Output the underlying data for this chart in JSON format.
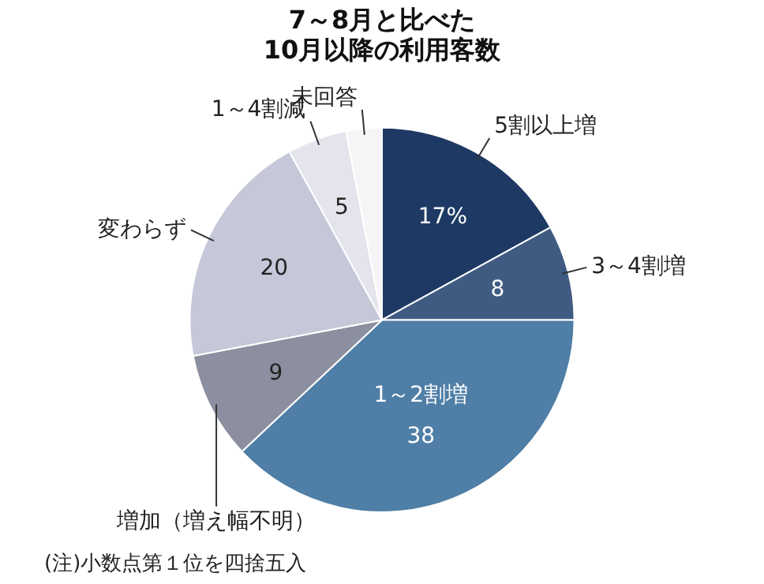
{
  "chart_data": {
    "type": "pie",
    "title": "7～8月と比べた\n10月以降の利用客数",
    "categories": [
      "5割以上増",
      "3～4割増",
      "1～2割増",
      "増加（増え幅不明）",
      "変わらず",
      "1～4割減",
      "未回答"
    ],
    "values": [
      17,
      8,
      38,
      9,
      20,
      5,
      3
    ],
    "colors": [
      "#1e3a64",
      "#3f5b82",
      "#4f7ea6",
      "#8b8f9f",
      "#c6c8d9",
      "#e4e5ec",
      "#f5f5f7"
    ],
    "value_labels": [
      "17%",
      "8",
      "38",
      "9",
      "20",
      "5",
      null
    ],
    "legend": false,
    "annotations": [
      "(注)小数点第１位を四捨五入"
    ]
  }
}
